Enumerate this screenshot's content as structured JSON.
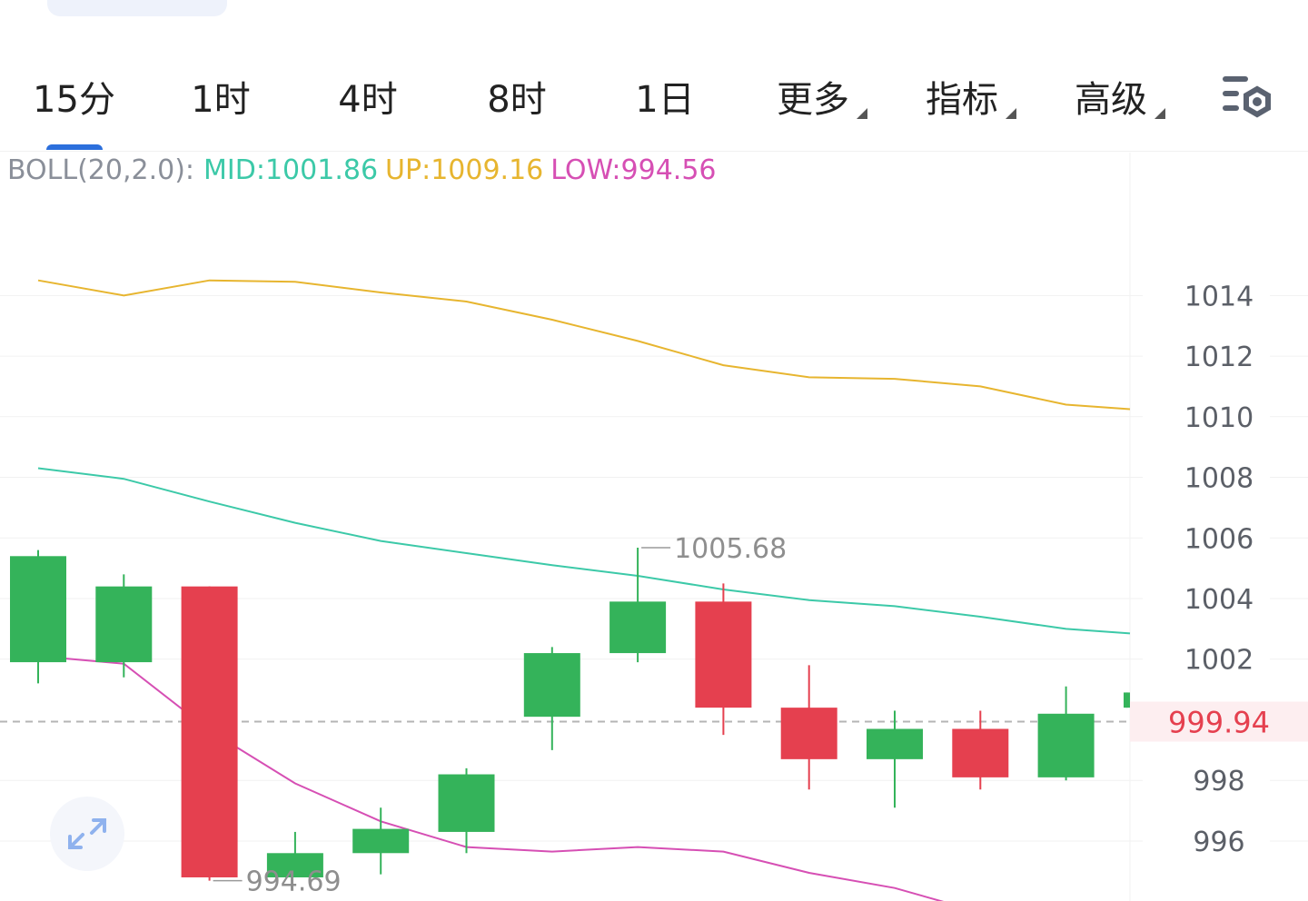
{
  "tabs": [
    {
      "label": "15分",
      "active": true,
      "dropdown": false
    },
    {
      "label": "1时",
      "active": false,
      "dropdown": false
    },
    {
      "label": "4时",
      "active": false,
      "dropdown": false
    },
    {
      "label": "8时",
      "active": false,
      "dropdown": false
    },
    {
      "label": "1日",
      "active": false,
      "dropdown": false
    },
    {
      "label": "更多",
      "active": false,
      "dropdown": true
    },
    {
      "label": "指标",
      "active": false,
      "dropdown": true
    },
    {
      "label": "高级",
      "active": false,
      "dropdown": true
    }
  ],
  "settings_icon": "chart-settings-icon",
  "expand_icon": "expand-icon",
  "indicator": {
    "name": "BOLL(20,2.0):",
    "mid": "MID:1001.86",
    "up": "UP:1009.16",
    "low": "LOW:994.56"
  },
  "colors": {
    "accent": "#2c6fdc",
    "up_candle": "#34b35a",
    "down_candle": "#e5404f",
    "mid_line": "#3cc9a8",
    "up_line": "#e7b52f",
    "low_line": "#d64fb4",
    "price_label": "#e5404f"
  },
  "chart_data": {
    "type": "candlestick",
    "y_ticks": [
      "1014",
      "1012",
      "1010",
      "1008",
      "1006",
      "1004",
      "1002",
      "998",
      "996"
    ],
    "ylim": [
      994.2,
      1014.4
    ],
    "current_price": 999.94,
    "current_price_label": "999.94",
    "max_label": "1005.68",
    "min_label": "994.69",
    "candles": [
      {
        "open": 1001.9,
        "close": 1005.4,
        "high": 1005.6,
        "low": 1001.2
      },
      {
        "open": 1001.9,
        "close": 1004.4,
        "high": 1004.8,
        "low": 1001.4
      },
      {
        "open": 1004.4,
        "close": 994.8,
        "high": 1004.4,
        "low": 994.69
      },
      {
        "open": 994.8,
        "close": 995.6,
        "high": 996.3,
        "low": 994.8
      },
      {
        "open": 995.6,
        "close": 996.4,
        "high": 997.1,
        "low": 994.9
      },
      {
        "open": 996.3,
        "close": 998.2,
        "high": 998.4,
        "low": 995.6
      },
      {
        "open": 1000.1,
        "close": 1002.2,
        "high": 1002.4,
        "low": 999.0
      },
      {
        "open": 1002.2,
        "close": 1003.9,
        "high": 1005.68,
        "low": 1001.9
      },
      {
        "open": 1003.9,
        "close": 1000.4,
        "high": 1004.5,
        "low": 999.5
      },
      {
        "open": 1000.4,
        "close": 998.7,
        "high": 1001.8,
        "low": 997.7
      },
      {
        "open": 998.7,
        "close": 999.7,
        "high": 1000.3,
        "low": 997.1
      },
      {
        "open": 999.7,
        "close": 998.1,
        "high": 1000.3,
        "low": 997.7
      },
      {
        "open": 998.1,
        "close": 1000.2,
        "high": 1001.1,
        "low": 998.0
      },
      {
        "open": 1000.4,
        "close": 1000.9,
        "high": 1000.9,
        "low": 1000.4
      }
    ],
    "boll_up": [
      1014.5,
      1014.0,
      1014.5,
      1014.45,
      1014.1,
      1013.8,
      1013.2,
      1012.5,
      1011.7,
      1011.3,
      1011.25,
      1011.0,
      1010.4,
      1010.25
    ],
    "boll_mid": [
      1008.3,
      1007.95,
      1007.2,
      1006.5,
      1005.9,
      1005.5,
      1005.1,
      1004.75,
      1004.3,
      1003.95,
      1003.75,
      1003.4,
      1003.0,
      1002.85
    ],
    "boll_low": [
      1002.1,
      1001.85,
      999.65,
      997.9,
      996.65,
      995.8,
      995.65,
      995.8,
      995.65,
      994.95,
      994.45,
      993.65,
      993.55,
      993.4
    ]
  }
}
